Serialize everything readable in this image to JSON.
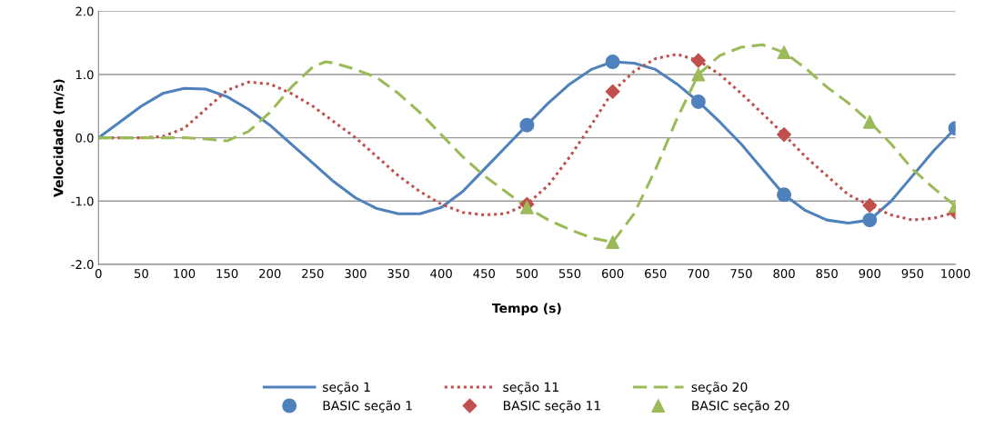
{
  "chart_data": {
    "type": "line",
    "xlabel": "Tempo (s)",
    "ylabel": "Velocidade (m/s)",
    "xlim": [
      0,
      1000
    ],
    "xticks": [
      0,
      50,
      100,
      150,
      200,
      250,
      300,
      350,
      400,
      450,
      500,
      550,
      600,
      650,
      700,
      750,
      800,
      850,
      900,
      950,
      1000
    ],
    "ylim": [
      -2,
      2
    ],
    "yticks": [
      {
        "value": -2,
        "label": "-2.0"
      },
      {
        "value": -1,
        "label": "-1.0"
      },
      {
        "value": 0,
        "label": "0.0"
      },
      {
        "value": 1,
        "label": "1.0"
      },
      {
        "value": 2,
        "label": "2.0"
      }
    ],
    "grid": "y",
    "legend": "bottom",
    "series": [
      {
        "name": "seção 1",
        "color": "#4f81bd",
        "line_style": "solid",
        "marker": "none",
        "x": [
          0,
          25,
          50,
          75,
          100,
          125,
          150,
          175,
          200,
          225,
          250,
          275,
          300,
          325,
          350,
          375,
          400,
          425,
          450,
          475,
          500,
          525,
          550,
          575,
          600,
          625,
          650,
          675,
          700,
          725,
          750,
          775,
          800,
          825,
          850,
          875,
          900,
          925,
          950,
          975,
          1000
        ],
        "values": [
          0,
          0.25,
          0.5,
          0.7,
          0.78,
          0.77,
          0.65,
          0.45,
          0.2,
          -0.1,
          -0.4,
          -0.7,
          -0.95,
          -1.12,
          -1.2,
          -1.2,
          -1.1,
          -0.85,
          -0.5,
          -0.15,
          0.2,
          0.55,
          0.85,
          1.08,
          1.2,
          1.18,
          1.08,
          0.85,
          0.57,
          0.25,
          -0.1,
          -0.5,
          -0.9,
          -1.15,
          -1.3,
          -1.35,
          -1.3,
          -1.0,
          -0.6,
          -0.2,
          0.15
        ]
      },
      {
        "name": "seção 11",
        "color": "#c0504d",
        "line_style": "dotted",
        "marker": "none",
        "x": [
          0,
          25,
          50,
          75,
          100,
          125,
          150,
          175,
          200,
          225,
          250,
          275,
          300,
          325,
          350,
          375,
          400,
          425,
          450,
          475,
          500,
          525,
          550,
          575,
          600,
          625,
          650,
          675,
          700,
          725,
          750,
          775,
          800,
          825,
          850,
          875,
          900,
          925,
          950,
          975,
          1000
        ],
        "values": [
          0,
          0,
          0,
          0.02,
          0.15,
          0.45,
          0.75,
          0.88,
          0.85,
          0.7,
          0.5,
          0.25,
          0.0,
          -0.3,
          -0.6,
          -0.85,
          -1.05,
          -1.18,
          -1.22,
          -1.2,
          -1.05,
          -0.75,
          -0.3,
          0.2,
          0.73,
          1.05,
          1.25,
          1.32,
          1.22,
          1.0,
          0.7,
          0.38,
          0.05,
          -0.3,
          -0.6,
          -0.9,
          -1.07,
          -1.22,
          -1.3,
          -1.27,
          -1.18
        ]
      },
      {
        "name": "seção 20",
        "color": "#9bbb59",
        "line_style": "dashed",
        "marker": "none",
        "x": [
          0,
          50,
          100,
          125,
          150,
          175,
          200,
          225,
          250,
          265,
          275,
          300,
          325,
          350,
          375,
          400,
          425,
          450,
          475,
          500,
          525,
          550,
          575,
          600,
          625,
          650,
          675,
          700,
          725,
          750,
          775,
          800,
          825,
          850,
          875,
          900,
          925,
          950,
          975,
          1000
        ],
        "values": [
          0,
          0,
          0,
          -0.02,
          -0.05,
          0.1,
          0.4,
          0.8,
          1.12,
          1.2,
          1.18,
          1.08,
          0.95,
          0.7,
          0.4,
          0.05,
          -0.3,
          -0.6,
          -0.85,
          -1.1,
          -1.3,
          -1.45,
          -1.58,
          -1.65,
          -1.2,
          -0.5,
          0.3,
          1.0,
          1.3,
          1.43,
          1.47,
          1.35,
          1.1,
          0.8,
          0.55,
          0.25,
          -0.1,
          -0.5,
          -0.8,
          -1.08
        ]
      },
      {
        "name": "BASIC seção 1",
        "type": "scatter",
        "color": "#4f81bd",
        "marker": "circle",
        "x": [
          500,
          600,
          700,
          800,
          900,
          1000
        ],
        "values": [
          0.2,
          1.2,
          0.57,
          -0.9,
          -1.3,
          0.15
        ]
      },
      {
        "name": "BASIC seção 11",
        "type": "scatter",
        "color": "#c0504d",
        "marker": "diamond",
        "x": [
          500,
          600,
          700,
          800,
          900,
          1000
        ],
        "values": [
          -1.05,
          0.73,
          1.22,
          0.05,
          -1.07,
          -1.18
        ]
      },
      {
        "name": "BASIC seção 20",
        "type": "scatter",
        "color": "#9bbb59",
        "marker": "triangle",
        "x": [
          500,
          600,
          700,
          800,
          900,
          1000
        ],
        "values": [
          -1.1,
          -1.65,
          1.0,
          1.35,
          0.25,
          -1.08
        ]
      }
    ]
  }
}
